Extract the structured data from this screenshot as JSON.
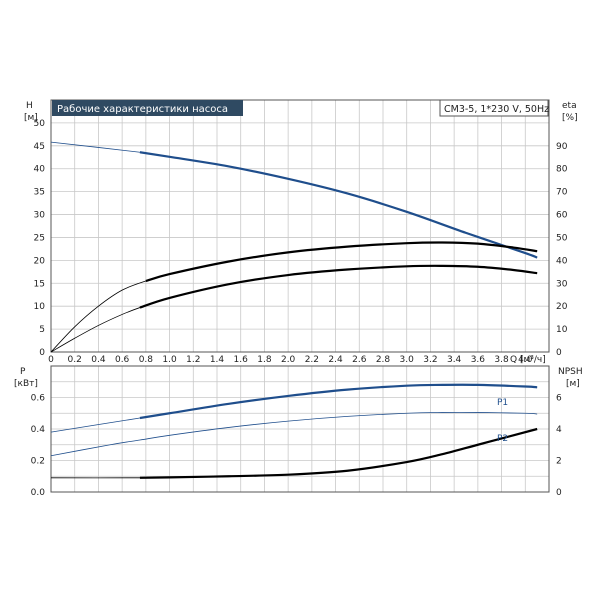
{
  "chart_data": [
    {
      "type": "line",
      "title": "Рабочие характеристики насоса",
      "info_box": "CM3-5, 1*230 V, 50Hz",
      "xlabel": "Q [м³/ч]",
      "x_unit_label": "Q [м³/ч]",
      "ylabel_left": "H",
      "ylabel_left_unit": "[м]",
      "ylabel_right": "eta",
      "ylabel_right_unit": "[%]",
      "xlim": [
        0,
        4.2
      ],
      "ylim_left": [
        0,
        55
      ],
      "ylim_right": [
        0,
        110
      ],
      "x_ticks": [
        "0",
        "0.2",
        "0.4",
        "0.6",
        "0.8",
        "1.0",
        "1.2",
        "1.4",
        "1.6",
        "1.8",
        "2.0",
        "2.2",
        "2.4",
        "2.6",
        "2.8",
        "3.0",
        "3.2",
        "3.4",
        "3.6",
        "3.8",
        "4.0"
      ],
      "y_ticks_left": [
        "0",
        "5",
        "10",
        "15",
        "20",
        "25",
        "30",
        "35",
        "40",
        "45",
        "50"
      ],
      "y_ticks_right": [
        "0",
        "10",
        "20",
        "30",
        "40",
        "50",
        "60",
        "70",
        "80",
        "90"
      ],
      "grid": true,
      "series": [
        {
          "axis": "left",
          "color": "#1f4e8c",
          "x": [
            0.0,
            0.75,
            1.0,
            1.5,
            2.0,
            2.5,
            3.0,
            3.5,
            4.0,
            4.1
          ],
          "values": [
            45.8,
            43.6,
            42.6,
            40.5,
            37.8,
            34.6,
            30.6,
            26.0,
            21.6,
            20.6
          ],
          "operating_range_from": 0.75
        },
        {
          "axis": "right",
          "color": "#000000",
          "x": [
            0.0,
            0.2,
            0.4,
            0.6,
            0.8,
            1.0,
            1.5,
            2.0,
            2.5,
            3.0,
            3.3,
            3.6,
            3.9,
            4.1
          ],
          "values": [
            0,
            11,
            20,
            27,
            31,
            34,
            39.5,
            43.5,
            46,
            47.5,
            47.8,
            47.3,
            45.6,
            44
          ],
          "operating_range_from": 0.75
        },
        {
          "axis": "left",
          "color": "#000000",
          "x": [
            0.0,
            0.2,
            0.4,
            0.6,
            0.75,
            1.0,
            1.5,
            2.0,
            2.5,
            3.0,
            3.3,
            3.6,
            3.9,
            4.1
          ],
          "values": [
            0,
            3,
            5.8,
            8.2,
            9.7,
            11.8,
            14.8,
            16.8,
            18.0,
            18.7,
            18.8,
            18.6,
            17.9,
            17.2
          ],
          "operating_range_from": 0.75
        }
      ]
    },
    {
      "type": "line",
      "ylabel_left": "P",
      "ylabel_left_unit": "[кВт]",
      "ylabel_right": "NPSH",
      "ylabel_right_unit": "[м]",
      "xlim": [
        0,
        4.2
      ],
      "ylim_left": [
        0,
        0.8
      ],
      "ylim_right": [
        0,
        8
      ],
      "y_ticks_left": [
        "0.0",
        "0.2",
        "0.4",
        "0.6"
      ],
      "y_ticks_right": [
        "0",
        "2",
        "4",
        "6"
      ],
      "grid": true,
      "series": [
        {
          "name": "P1",
          "axis": "left",
          "color": "#1f4e8c",
          "x": [
            0.0,
            0.75,
            1.0,
            1.5,
            2.0,
            2.5,
            3.0,
            3.3,
            3.6,
            4.0,
            4.1
          ],
          "values": [
            0.38,
            0.47,
            0.5,
            0.56,
            0.61,
            0.65,
            0.675,
            0.68,
            0.68,
            0.67,
            0.665
          ],
          "operating_range_from": 0.75
        },
        {
          "name": "P2",
          "axis": "left",
          "color": "#1f4e8c",
          "x": [
            0.0,
            0.5,
            0.75,
            1.0,
            1.5,
            2.0,
            2.5,
            3.0,
            3.3,
            3.6,
            4.0,
            4.1
          ],
          "values": [
            0.23,
            0.3,
            0.33,
            0.36,
            0.41,
            0.45,
            0.48,
            0.5,
            0.505,
            0.505,
            0.5,
            0.495
          ],
          "operating_range_from": null
        },
        {
          "axis": "right",
          "color": "#000000",
          "x": [
            0.0,
            0.75,
            1.0,
            1.5,
            2.0,
            2.5,
            3.0,
            3.3,
            3.6,
            3.9,
            4.1
          ],
          "values": [
            0.9,
            0.9,
            0.93,
            1.0,
            1.1,
            1.35,
            1.9,
            2.4,
            3.0,
            3.6,
            4.0
          ],
          "operating_range_from": 0.75
        }
      ]
    }
  ]
}
